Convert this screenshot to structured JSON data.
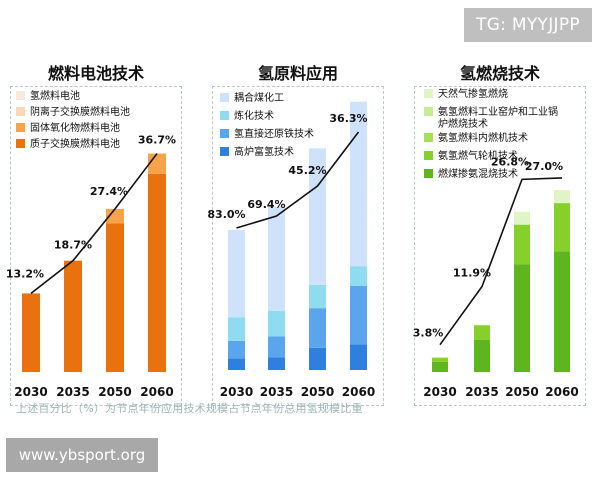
{
  "tag": "TG: MYYJJPP",
  "watermark": "www.ybsport.org",
  "footnote": "上述百分比（%）为节点年份应用技术规模占节点年份总用氢规模比重",
  "chart_data": [
    {
      "type": "bar",
      "title": "燃料电池技术",
      "categories": [
        "2030",
        "2035",
        "2050",
        "2060"
      ],
      "legend": [
        "氢燃料电池",
        "阴离子交换膜燃料电池",
        "固体氧化物燃料电池",
        "质子交换膜燃料电池"
      ],
      "colors": [
        "#f7e9dc",
        "#fbd7b3",
        "#f6a34a",
        "#e9720f"
      ],
      "series": [
        {
          "name": "质子交换膜燃料电池",
          "values": [
            13.2,
            18.7,
            25.0,
            33.3
          ]
        },
        {
          "name": "固体氧化物燃料电池",
          "values": [
            0,
            0,
            2.4,
            3.4
          ]
        }
      ],
      "labels": [
        "13.2%",
        "18.7%",
        "27.4%",
        "36.7%"
      ],
      "line_values": [
        13.2,
        18.7,
        27.4,
        36.7
      ],
      "ylim": [
        0,
        42
      ]
    },
    {
      "type": "bar",
      "title": "氢原料应用",
      "categories": [
        "2030",
        "2035",
        "2050",
        "2060"
      ],
      "legend": [
        "耦合煤化工",
        "炼化技术",
        "氢直接还原铁技术",
        "高炉富氢技术"
      ],
      "colors": [
        "#cfe2fb",
        "#8fdcf0",
        "#5aa5ec",
        "#2f7fde"
      ],
      "series": [
        {
          "name": "高炉富氢技术",
          "values": [
            5.0,
            5.4,
            9.5,
            11.0
          ]
        },
        {
          "name": "氢直接还原铁技术",
          "values": [
            7.5,
            9.0,
            17.0,
            25.0
          ]
        },
        {
          "name": "炼化技术",
          "values": [
            10.0,
            11.0,
            10.0,
            8.5
          ]
        },
        {
          "name": "耦合煤化工",
          "values": [
            37.5,
            44.6,
            58.5,
            70.5
          ]
        }
      ],
      "labels": [
        "83.0%",
        "69.4%",
        "45.2%",
        "36.3%"
      ],
      "line_values": [
        83.0,
        69.4,
        45.2,
        36.3
      ],
      "ylim": [
        0,
        120
      ]
    },
    {
      "type": "bar",
      "title": "氢燃烧技术",
      "categories": [
        "2030",
        "2035",
        "2050",
        "2060"
      ],
      "legend": [
        "天然气掺氢燃烧",
        "氨氢燃料工业窑炉和工业锅炉燃烧技术",
        "氨氢燃料内燃机技术",
        "氨氢燃气轮机技术",
        "燃煤掺氨混烧技术"
      ],
      "colors": [
        "#dff5c6",
        "#c3ec94",
        "#a4e05a",
        "#85d02b",
        "#5fb51e"
      ],
      "series": [
        {
          "name": "燃煤掺氨混烧技术",
          "values": [
            1.4,
            4.5,
            15.0,
            16.8
          ]
        },
        {
          "name": "氨氢燃气轮机技术",
          "values": [
            0.6,
            2.0,
            5.5,
            6.7
          ]
        },
        {
          "name": "天然气掺氢燃烧",
          "values": [
            0,
            0,
            1.8,
            1.8
          ]
        }
      ],
      "labels": [
        "3.8%",
        "11.9%",
        "26.8%",
        "27.0%"
      ],
      "line_values": [
        3.8,
        11.9,
        26.8,
        27.0
      ],
      "ylim": [
        0,
        32
      ]
    }
  ]
}
